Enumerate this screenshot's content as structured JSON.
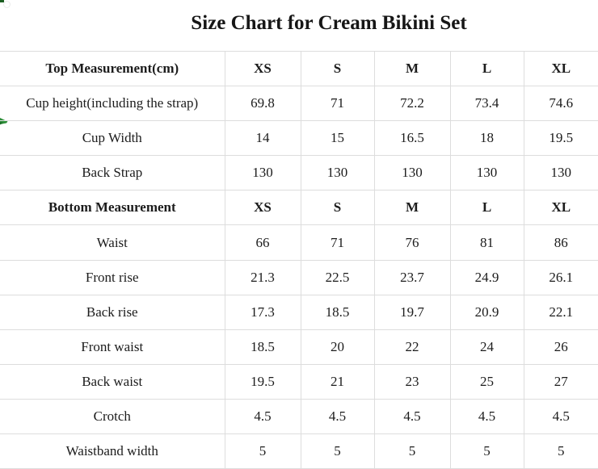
{
  "title": "Size Chart for Cream Bikini Set",
  "chart_data": {
    "type": "table",
    "title": "Size Chart for Cream Bikini Set",
    "size_labels": [
      "XS",
      "S",
      "M",
      "L",
      "XL"
    ],
    "sections": [
      {
        "header": "Top Measurement(cm)",
        "rows": [
          {
            "label": "Cup height(including the strap)",
            "values": [
              "69.8",
              "71",
              "72.2",
              "73.4",
              "74.6"
            ]
          },
          {
            "label": "Cup Width",
            "values": [
              "14",
              "15",
              "16.5",
              "18",
              "19.5"
            ]
          },
          {
            "label": "Back Strap",
            "values": [
              "130",
              "130",
              "130",
              "130",
              "130"
            ]
          }
        ]
      },
      {
        "header": "Bottom Measurement",
        "rows": [
          {
            "label": "Waist",
            "values": [
              "66",
              "71",
              "76",
              "81",
              "86"
            ]
          },
          {
            "label": "Front rise",
            "values": [
              "21.3",
              "22.5",
              "23.7",
              "24.9",
              "26.1"
            ]
          },
          {
            "label": "Back rise",
            "values": [
              "17.3",
              "18.5",
              "19.7",
              "20.9",
              "22.1"
            ]
          },
          {
            "label": "Front waist",
            "values": [
              "18.5",
              "20",
              "22",
              "24",
              "26"
            ]
          },
          {
            "label": "Back waist",
            "values": [
              "19.5",
              "21",
              "23",
              "25",
              "27"
            ]
          },
          {
            "label": "Crotch",
            "values": [
              "4.5",
              "4.5",
              "4.5",
              "4.5",
              "4.5"
            ]
          },
          {
            "label": "Waistband width",
            "values": [
              "5",
              "5",
              "5",
              "5",
              "5"
            ]
          }
        ]
      }
    ],
    "grid": true,
    "legend_position": "none"
  },
  "icons": {
    "left_edge": "green-checkmark-fragment-icon",
    "top_left_corner": "cropped-icon-fragment"
  },
  "colors": {
    "grid_line": "#dddddd",
    "text": "#1c1c1c",
    "accent_green": "#2e8f3a",
    "background": "#ffffff"
  }
}
